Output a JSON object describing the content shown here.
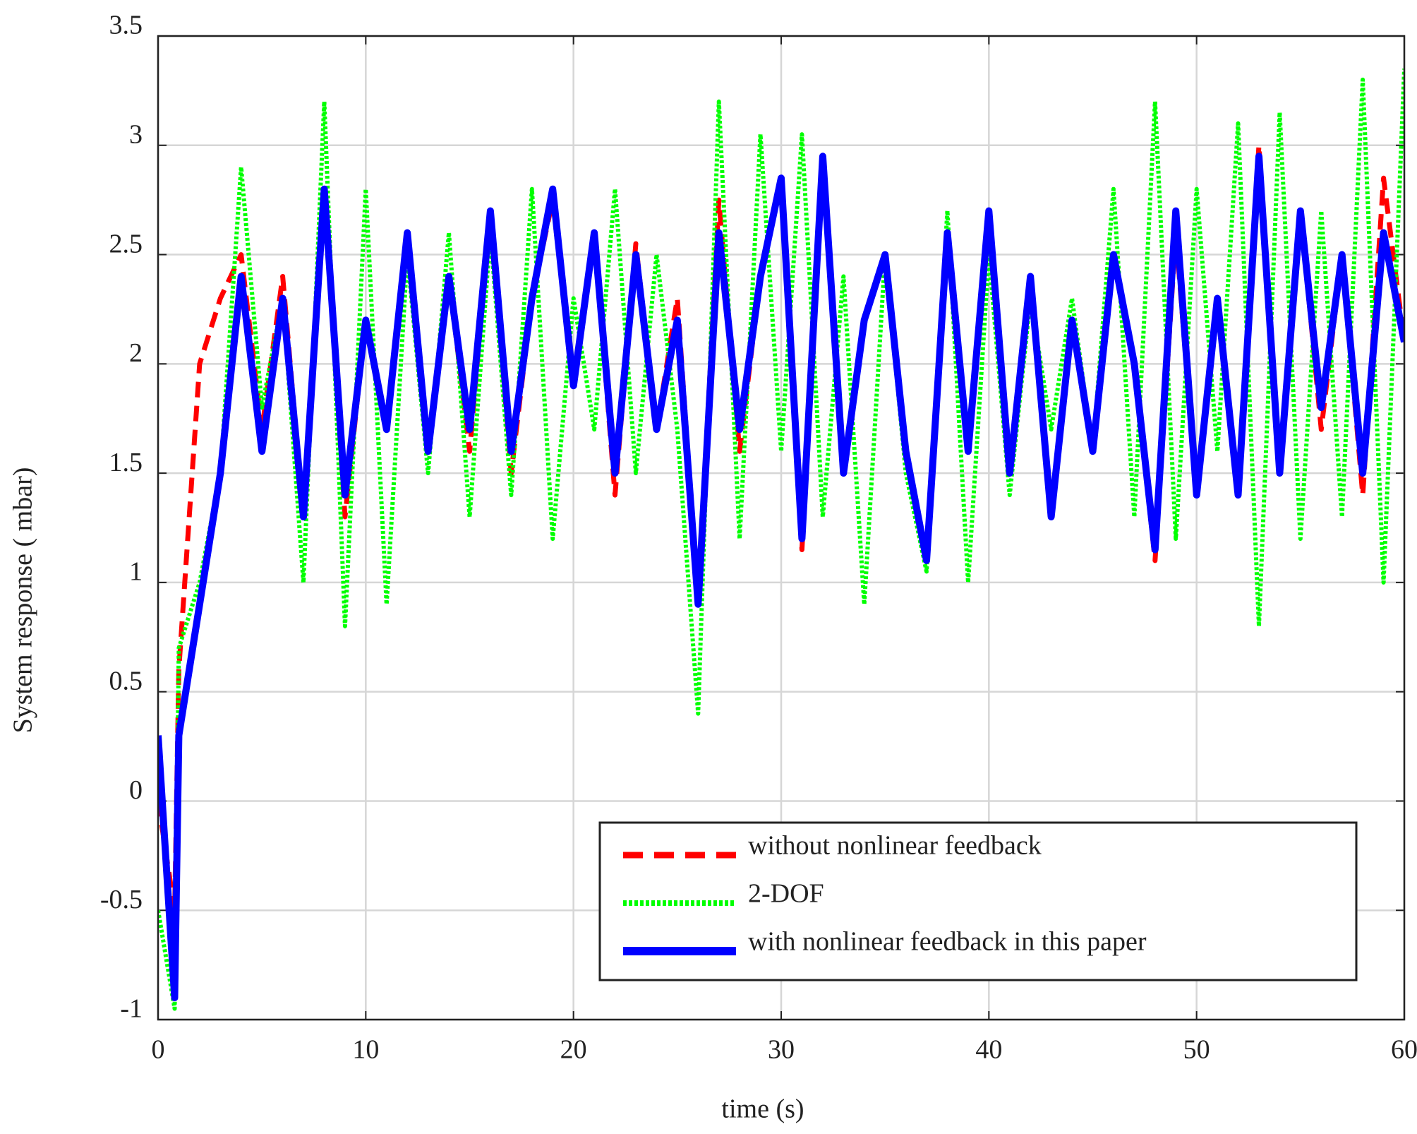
{
  "chart_data": {
    "type": "line",
    "xlabel": "time (s)",
    "ylabel": "System response  ( mbar)",
    "x": [
      0,
      0.8,
      1,
      2,
      3,
      4,
      5,
      6,
      7,
      8,
      9,
      10,
      11,
      12,
      13,
      14,
      15,
      16,
      17,
      18,
      19,
      20,
      21,
      22,
      23,
      24,
      25,
      26,
      27,
      28,
      29,
      30,
      31,
      32,
      33,
      34,
      35,
      36,
      37,
      38,
      39,
      40,
      41,
      42,
      43,
      44,
      45,
      46,
      47,
      48,
      49,
      50,
      51,
      52,
      53,
      54,
      55,
      56,
      57,
      58,
      59,
      60
    ],
    "series": [
      {
        "name": "without nonlinear feedback",
        "color": "#ff0000",
        "linestyle": "dashed",
        "values": [
          0.0,
          -0.5,
          0.6,
          2.0,
          2.3,
          2.5,
          1.7,
          2.4,
          1.3,
          2.8,
          1.3,
          2.2,
          1.7,
          2.6,
          1.6,
          2.4,
          1.6,
          2.7,
          1.5,
          2.3,
          2.75,
          1.9,
          2.6,
          1.4,
          2.55,
          1.7,
          2.3,
          0.9,
          2.75,
          1.6,
          2.4,
          2.85,
          1.15,
          2.95,
          1.5,
          2.2,
          2.5,
          1.6,
          1.1,
          2.6,
          1.6,
          2.65,
          1.5,
          2.4,
          1.3,
          2.2,
          1.6,
          2.5,
          2.0,
          1.1,
          2.6,
          1.4,
          2.3,
          1.4,
          3.0,
          1.5,
          2.7,
          1.7,
          2.5,
          1.4,
          2.85,
          2.1
        ]
      },
      {
        "name": "2-DOF",
        "color": "#00ff00",
        "linestyle": "dotted",
        "values": [
          -0.5,
          -0.95,
          0.7,
          1.0,
          1.5,
          2.9,
          1.8,
          2.3,
          1.0,
          3.2,
          0.8,
          2.8,
          0.9,
          2.5,
          1.5,
          2.6,
          1.3,
          2.6,
          1.4,
          2.8,
          1.2,
          2.3,
          1.7,
          2.8,
          1.5,
          2.5,
          1.7,
          0.4,
          3.2,
          1.2,
          3.05,
          1.6,
          3.05,
          1.3,
          2.4,
          0.9,
          2.5,
          1.5,
          1.05,
          2.7,
          1.0,
          2.5,
          1.4,
          2.3,
          1.7,
          2.3,
          1.6,
          2.8,
          1.3,
          3.2,
          1.2,
          2.8,
          1.6,
          3.1,
          0.8,
          3.15,
          1.2,
          2.7,
          1.3,
          3.3,
          1.0,
          3.35
        ]
      },
      {
        "name": "with nonlinear feedback in this paper",
        "color": "#0000ff",
        "linestyle": "solid",
        "values": [
          0.3,
          -0.9,
          0.3,
          0.9,
          1.5,
          2.4,
          1.6,
          2.3,
          1.3,
          2.8,
          1.4,
          2.2,
          1.7,
          2.6,
          1.6,
          2.4,
          1.7,
          2.7,
          1.6,
          2.3,
          2.8,
          1.9,
          2.6,
          1.5,
          2.5,
          1.7,
          2.2,
          0.9,
          2.6,
          1.7,
          2.4,
          2.85,
          1.2,
          2.95,
          1.5,
          2.2,
          2.5,
          1.6,
          1.1,
          2.6,
          1.6,
          2.7,
          1.5,
          2.4,
          1.3,
          2.2,
          1.6,
          2.5,
          2.0,
          1.15,
          2.7,
          1.4,
          2.3,
          1.4,
          2.95,
          1.5,
          2.7,
          1.8,
          2.5,
          1.5,
          2.6,
          2.1
        ]
      }
    ],
    "xlim": [
      0,
      60
    ],
    "xticks": [
      0,
      10,
      20,
      30,
      40,
      50,
      60
    ],
    "ylim": [
      -1,
      3.5
    ],
    "yticks": [
      -1,
      -0.5,
      0,
      0.5,
      1,
      1.5,
      2,
      2.5,
      3,
      3.5
    ],
    "grid": true,
    "legend": "lower right"
  }
}
